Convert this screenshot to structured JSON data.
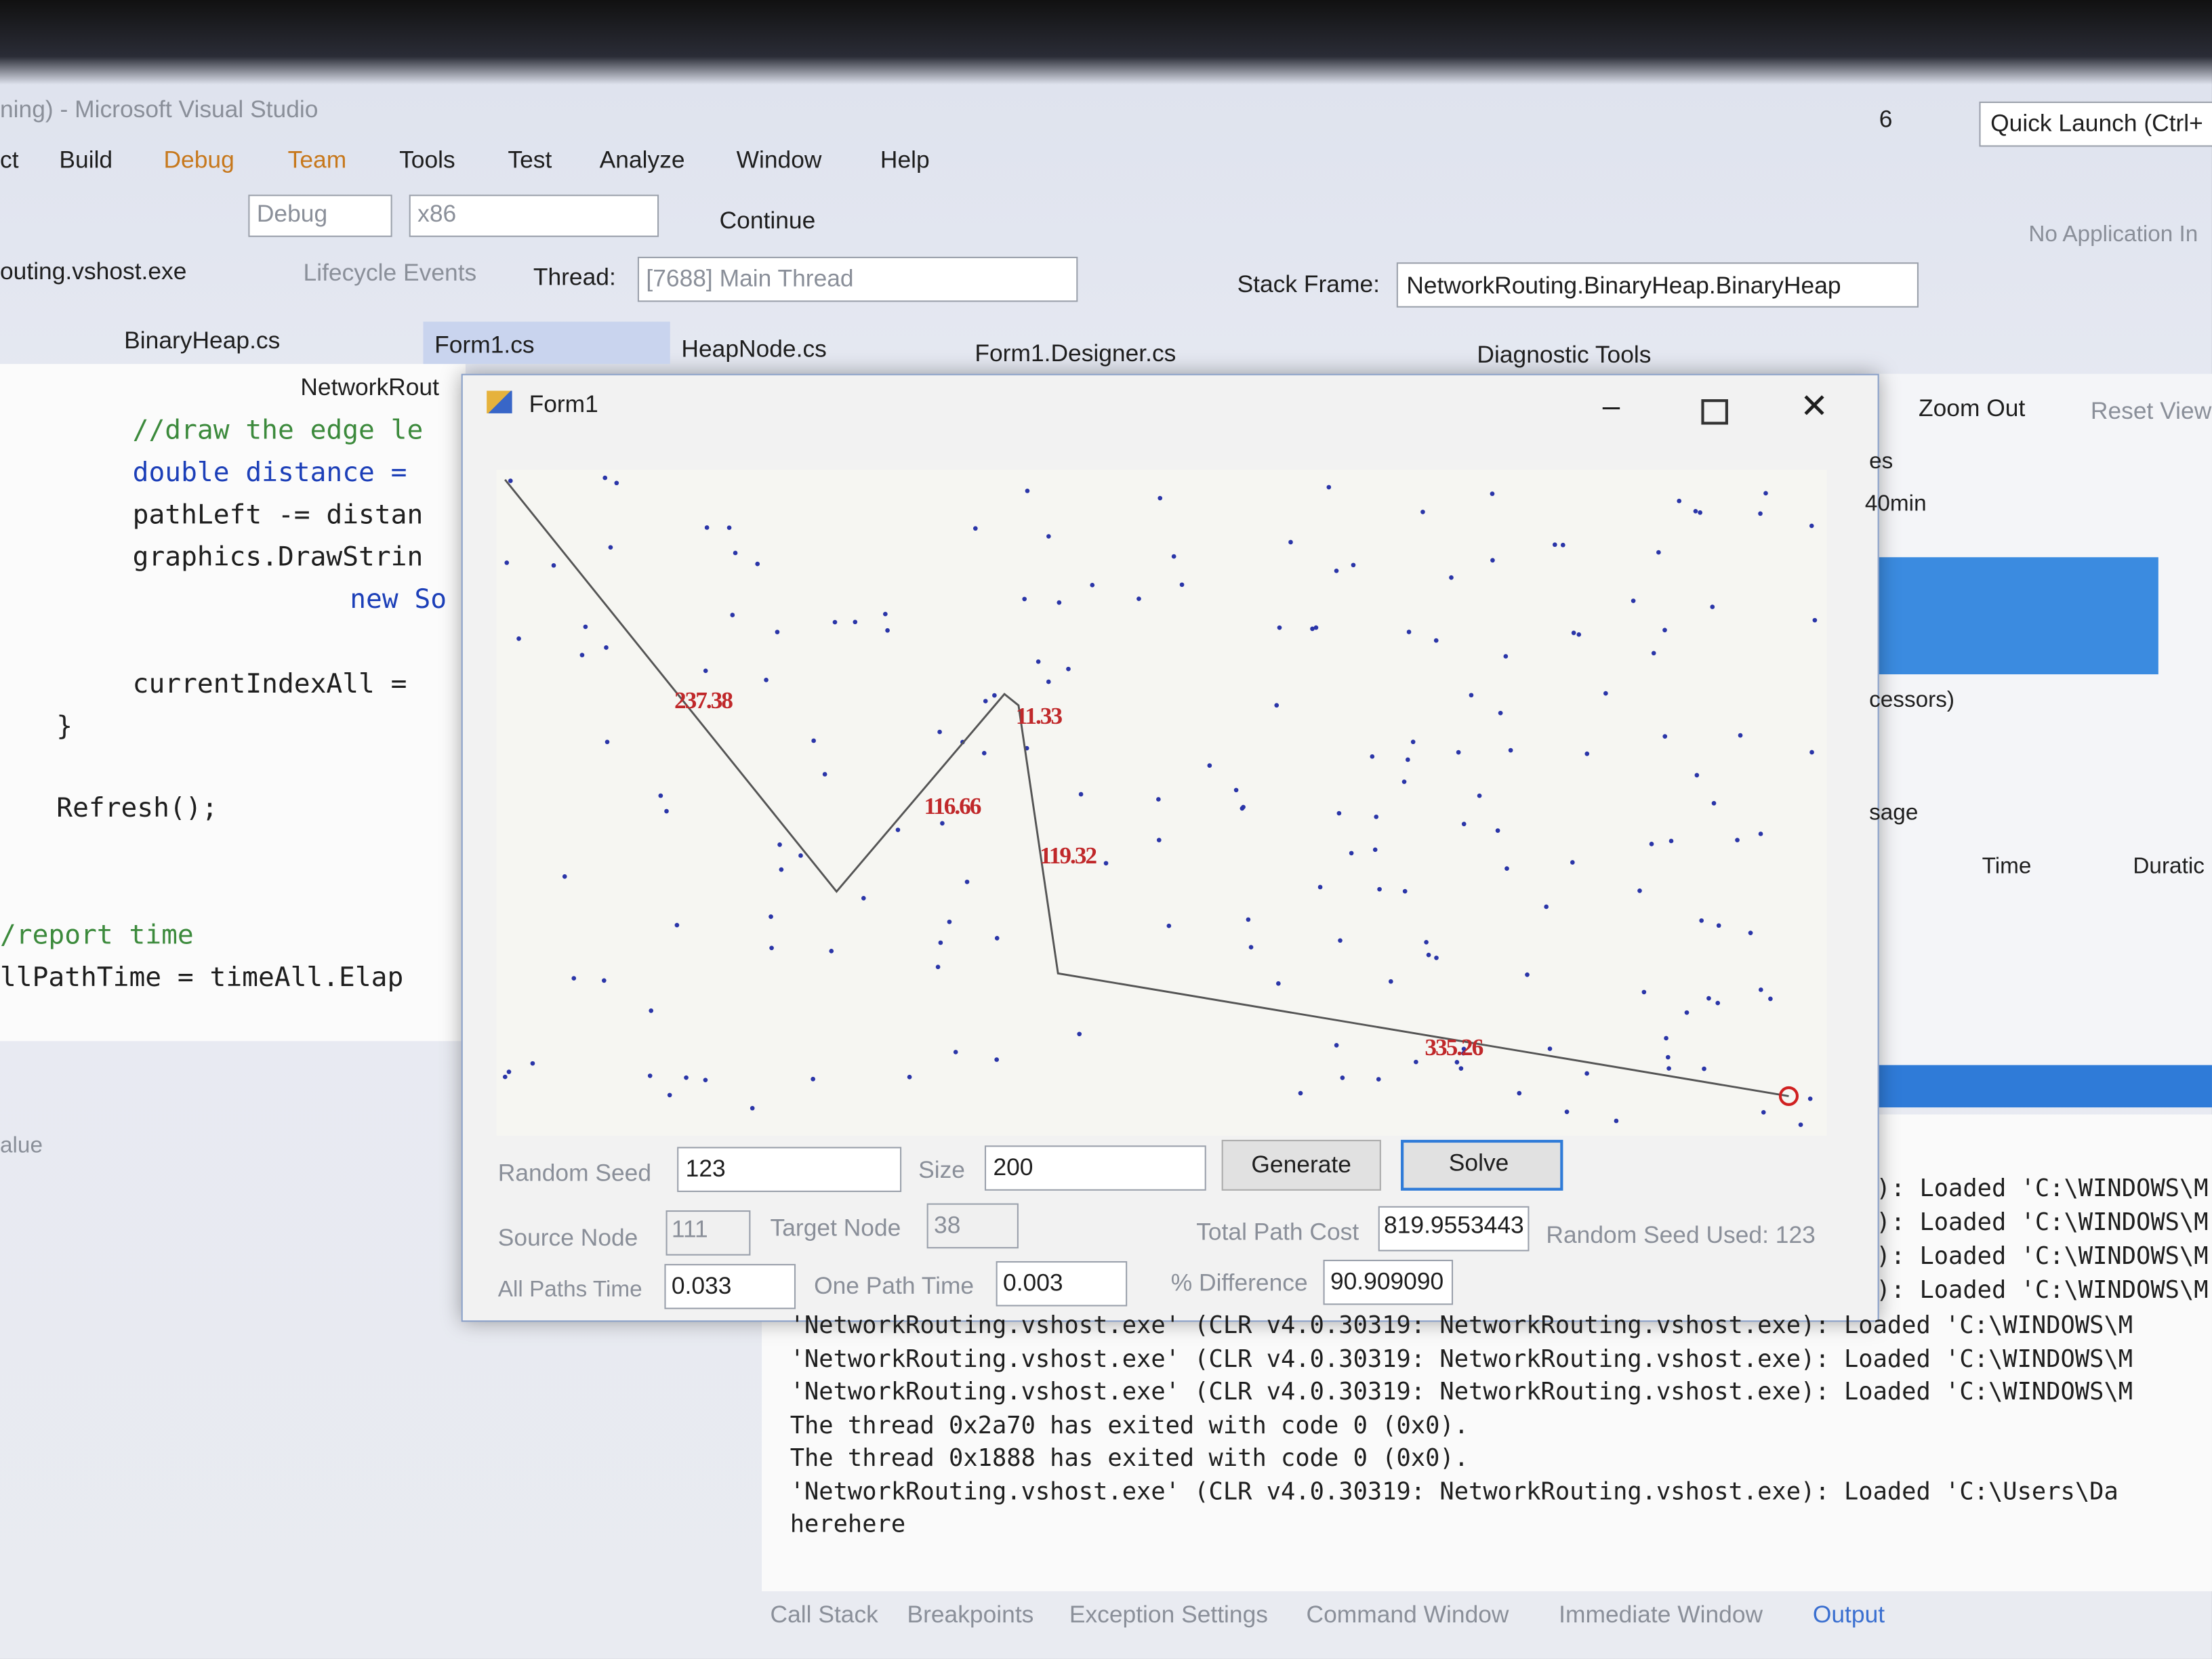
{
  "title": "ning) - Microsoft Visual Studio",
  "notifications": "6",
  "quick_launch": "Quick Launch (Ctrl+",
  "menu": [
    "ct",
    "Build",
    "Debug",
    "Team",
    "Tools",
    "Test",
    "Analyze",
    "Window",
    "Help"
  ],
  "toolbar": {
    "config": "Debug",
    "platform": "x86",
    "continue": "Continue",
    "no_app": "No Application In"
  },
  "debug_bar": {
    "process": "outing.vshost.exe",
    "lifecycle": "Lifecycle Events",
    "thread_label": "Thread:",
    "thread": "[7688] Main Thread",
    "stack_label": "Stack Frame:",
    "stack": "NetworkRouting.BinaryHeap.BinaryHeap"
  },
  "tabs": [
    "BinaryHeap.cs",
    "Form1.cs",
    "HeapNode.cs",
    "Form1.Designer.cs"
  ],
  "diagnostic": {
    "title": "Diagnostic Tools",
    "zoom_out": "Zoom Out",
    "reset": "Reset View",
    "events": "es",
    "time_scale": "40min",
    "processors": "cessors)",
    "usage": "sage",
    "time": "Time",
    "duration": "Duratic"
  },
  "editor": {
    "nav": "NetworkRout",
    "lines": [
      "//draw the edge le",
      "double distance =",
      "pathLeft -= distan",
      "graphics.DrawStrin",
      "new So",
      "currentIndexAll =",
      "}",
      "Refresh();",
      "/report time",
      "llPathTime = timeAll.Elap"
    ]
  },
  "form": {
    "title": "Form1",
    "edges": [
      "237.38",
      "116.66",
      "11.33",
      "119.32",
      "335.26"
    ],
    "random_seed_label": "Random Seed",
    "random_seed": "123",
    "size_label": "Size",
    "size": "200",
    "generate": "Generate",
    "solve": "Solve",
    "source_label": "Source Node",
    "source": "111",
    "target_label": "Target Node",
    "target": "38",
    "cost_label": "Total Path Cost",
    "cost": "819.9553443",
    "seed_used": "Random Seed Used: 123",
    "all_time_label": "All Paths Time",
    "all_time": "0.033",
    "one_time_label": "One Path Time",
    "one_time": "0.003",
    "diff_label": "% Difference",
    "diff": "90.909090"
  },
  "output": {
    "side_lines": [
      "): Loaded 'C:\\WINDOWS\\M",
      "): Loaded 'C:\\WINDOWS\\M",
      "): Loaded 'C:\\WINDOWS\\M",
      "): Loaded 'C:\\WINDOWS\\M"
    ],
    "lines": [
      "'NetworkRouting.vshost.exe' (CLR v4.0.30319: NetworkRouting.vshost.exe): Loaded 'C:\\WINDOWS\\M",
      "'NetworkRouting.vshost.exe' (CLR v4.0.30319: NetworkRouting.vshost.exe): Loaded 'C:\\WINDOWS\\M",
      "'NetworkRouting.vshost.exe' (CLR v4.0.30319: NetworkRouting.vshost.exe): Loaded 'C:\\WINDOWS\\M",
      "The thread 0x2a70 has exited with code 0 (0x0).",
      "The thread 0x1888 has exited with code 0 (0x0).",
      "'NetworkRouting.vshost.exe' (CLR v4.0.30319: NetworkRouting.vshost.exe): Loaded 'C:\\Users\\Da",
      "herehere"
    ],
    "watch_column": "alue"
  },
  "bottom_tabs": [
    "Call Stack",
    "Breakpoints",
    "Exception Settings",
    "Command Window",
    "Immediate Window",
    "Output"
  ]
}
